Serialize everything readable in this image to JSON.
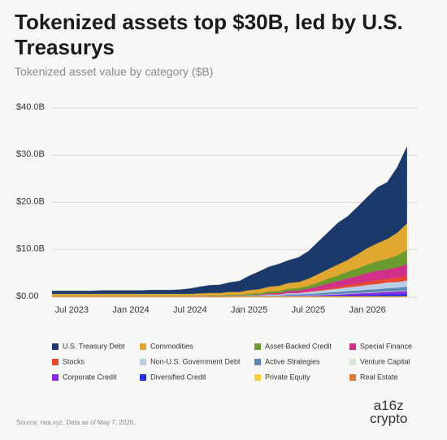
{
  "title": "Tokenized assets top $30B, led by U.S. Treasurys",
  "subtitle": "Tokenized asset value by category ($B)",
  "source": "Source: rwa.xyz. Data as of May 7, 2026.",
  "logo": [
    "a16z",
    "crypto"
  ],
  "chart_data": {
    "type": "stacked-area",
    "x": [
      "May 2023",
      "Jun 2023",
      "Jul 2023",
      "Aug 2023",
      "Sep 2023",
      "Oct 2023",
      "Nov 2023",
      "Dec 2023",
      "Jan 2024",
      "Feb 2024",
      "Mar 2024",
      "Apr 2024",
      "May 2024",
      "Jun 2024",
      "Jul 2024",
      "Aug 2024",
      "Sep 2024",
      "Oct 2024",
      "Nov 2024",
      "Dec 2024",
      "Jan 2025",
      "Feb 2025",
      "Mar 2025",
      "Apr 2025",
      "May 2025",
      "Jun 2025",
      "Jul 2025",
      "Aug 2025",
      "Sep 2025",
      "Oct 2025",
      "Nov 2025",
      "Dec 2025",
      "Jan 2026",
      "Feb 2026",
      "Mar 2026",
      "Apr 2026",
      "May 2026"
    ],
    "xticks": [
      "Jul 2023",
      "Jan 2024",
      "Jul 2024",
      "Jan 2025",
      "Jul 2025",
      "Jan 2026"
    ],
    "ylim": [
      0,
      40
    ],
    "yticks": [
      {
        "value": 0,
        "label": "$0.00"
      },
      {
        "value": 10,
        "label": "$10.0B"
      },
      {
        "value": 20,
        "label": "$20.0B"
      },
      {
        "value": 30,
        "label": "$30.0B"
      },
      {
        "value": 40,
        "label": "$40.0B"
      }
    ],
    "grid": true,
    "series": [
      {
        "name": "U.S. Treasury Debt",
        "color": "#1b3a6b",
        "values": [
          0.6,
          0.6,
          0.6,
          0.6,
          0.6,
          0.7,
          0.7,
          0.7,
          0.7,
          0.7,
          0.8,
          0.8,
          0.8,
          0.9,
          1.1,
          1.4,
          1.6,
          1.7,
          2.0,
          2.3,
          3.0,
          3.7,
          4.2,
          4.6,
          4.8,
          5.2,
          5.8,
          6.8,
          7.8,
          8.8,
          9.2,
          10.0,
          10.8,
          11.8,
          12.0,
          13.8,
          16.2
        ]
      },
      {
        "name": "Commodities",
        "color": "#e0a82e",
        "values": [
          0.4,
          0.4,
          0.4,
          0.4,
          0.4,
          0.4,
          0.4,
          0.4,
          0.4,
          0.4,
          0.4,
          0.4,
          0.4,
          0.4,
          0.4,
          0.5,
          0.5,
          0.5,
          0.6,
          0.6,
          0.8,
          0.9,
          1.0,
          1.1,
          1.2,
          1.3,
          1.5,
          1.8,
          2.0,
          2.3,
          2.5,
          3.0,
          3.5,
          3.8,
          4.2,
          4.8,
          5.6
        ]
      },
      {
        "name": "Asset-Backed Credit",
        "color": "#6b9a2f",
        "values": [
          0,
          0,
          0,
          0,
          0,
          0,
          0,
          0,
          0,
          0,
          0,
          0,
          0,
          0,
          0,
          0,
          0.1,
          0.1,
          0.2,
          0.2,
          0.3,
          0.3,
          0.4,
          0.4,
          0.5,
          0.5,
          0.6,
          0.8,
          1.0,
          1.2,
          1.4,
          1.6,
          1.8,
          2.0,
          2.2,
          2.5,
          3.0
        ]
      },
      {
        "name": "Special Finance",
        "color": "#d0308a",
        "values": [
          0,
          0,
          0,
          0,
          0,
          0,
          0,
          0,
          0,
          0,
          0,
          0,
          0,
          0,
          0,
          0,
          0,
          0,
          0,
          0,
          0,
          0.1,
          0.2,
          0.3,
          0.4,
          0.5,
          0.6,
          0.8,
          1.0,
          1.2,
          1.4,
          1.6,
          1.8,
          2.0,
          2.0,
          2.2,
          2.5
        ]
      },
      {
        "name": "Stocks",
        "color": "#e8472f",
        "values": [
          0,
          0,
          0,
          0,
          0,
          0,
          0,
          0,
          0,
          0,
          0,
          0,
          0,
          0,
          0,
          0,
          0,
          0,
          0,
          0,
          0,
          0,
          0,
          0,
          0,
          0,
          0.1,
          0.2,
          0.3,
          0.4,
          0.5,
          0.6,
          0.7,
          0.8,
          0.8,
          0.9,
          1.0
        ]
      },
      {
        "name": "Non-U.S. Government Debt",
        "color": "#b9cfe6",
        "values": [
          0,
          0,
          0,
          0,
          0,
          0,
          0,
          0,
          0,
          0,
          0,
          0,
          0,
          0,
          0,
          0,
          0,
          0,
          0,
          0,
          0.1,
          0.1,
          0.2,
          0.2,
          0.3,
          0.3,
          0.4,
          0.5,
          0.6,
          0.7,
          0.8,
          0.9,
          1.0,
          1.1,
          1.2,
          1.2,
          1.3
        ]
      },
      {
        "name": "Active Strategies",
        "color": "#5b87b5",
        "values": [
          0,
          0,
          0,
          0,
          0,
          0,
          0,
          0,
          0,
          0,
          0,
          0,
          0,
          0,
          0,
          0,
          0,
          0,
          0,
          0,
          0,
          0,
          0.1,
          0.1,
          0.2,
          0.2,
          0.3,
          0.3,
          0.4,
          0.4,
          0.5,
          0.5,
          0.6,
          0.6,
          0.7,
          0.7,
          0.8
        ]
      },
      {
        "name": "Venture Capital",
        "color": "#cfe9d4",
        "values": [
          0.1,
          0.1,
          0.1,
          0.1,
          0.1,
          0.1,
          0.1,
          0.1,
          0.1,
          0.1,
          0.1,
          0.1,
          0.1,
          0.1,
          0.1,
          0.1,
          0.1,
          0.1,
          0.1,
          0.1,
          0.1,
          0.1,
          0.1,
          0.1,
          0.1,
          0.1,
          0.1,
          0.1,
          0.1,
          0.1,
          0.1,
          0.1,
          0.1,
          0.1,
          0.1,
          0.1,
          0.1
        ]
      },
      {
        "name": "Corporate Credit",
        "color": "#8a2be2",
        "values": [
          0,
          0,
          0,
          0,
          0,
          0,
          0,
          0,
          0,
          0,
          0,
          0,
          0,
          0,
          0,
          0,
          0,
          0,
          0,
          0,
          0,
          0,
          0,
          0,
          0.1,
          0.1,
          0.1,
          0.2,
          0.2,
          0.3,
          0.3,
          0.4,
          0.4,
          0.5,
          0.5,
          0.6,
          0.6
        ]
      },
      {
        "name": "Diversified Credit",
        "color": "#2a2ee0",
        "values": [
          0,
          0,
          0,
          0,
          0,
          0,
          0,
          0,
          0,
          0,
          0,
          0,
          0,
          0,
          0,
          0,
          0,
          0,
          0,
          0,
          0,
          0,
          0,
          0,
          0,
          0,
          0,
          0,
          0.1,
          0.1,
          0.2,
          0.2,
          0.3,
          0.3,
          0.4,
          0.4,
          0.5
        ]
      },
      {
        "name": "Private Equity",
        "color": "#f2d33c",
        "values": [
          0.1,
          0.1,
          0.1,
          0.1,
          0.1,
          0.1,
          0.1,
          0.1,
          0.1,
          0.1,
          0.1,
          0.1,
          0.1,
          0.1,
          0.1,
          0.1,
          0.1,
          0.1,
          0.1,
          0.1,
          0.1,
          0.1,
          0.1,
          0.1,
          0.1,
          0.1,
          0.1,
          0.1,
          0.1,
          0.1,
          0.1,
          0.1,
          0.1,
          0.1,
          0.1,
          0.1,
          0.1
        ]
      },
      {
        "name": "Real Estate",
        "color": "#e07a2e",
        "values": [
          0.1,
          0.1,
          0.1,
          0.1,
          0.1,
          0.1,
          0.1,
          0.1,
          0.1,
          0.1,
          0.1,
          0.1,
          0.1,
          0.1,
          0.1,
          0.1,
          0.1,
          0.1,
          0.1,
          0.1,
          0.1,
          0.1,
          0.1,
          0.1,
          0.1,
          0.1,
          0.1,
          0.1,
          0.1,
          0.1,
          0.1,
          0.1,
          0.1,
          0.1,
          0.1,
          0.1,
          0.1
        ]
      }
    ]
  }
}
